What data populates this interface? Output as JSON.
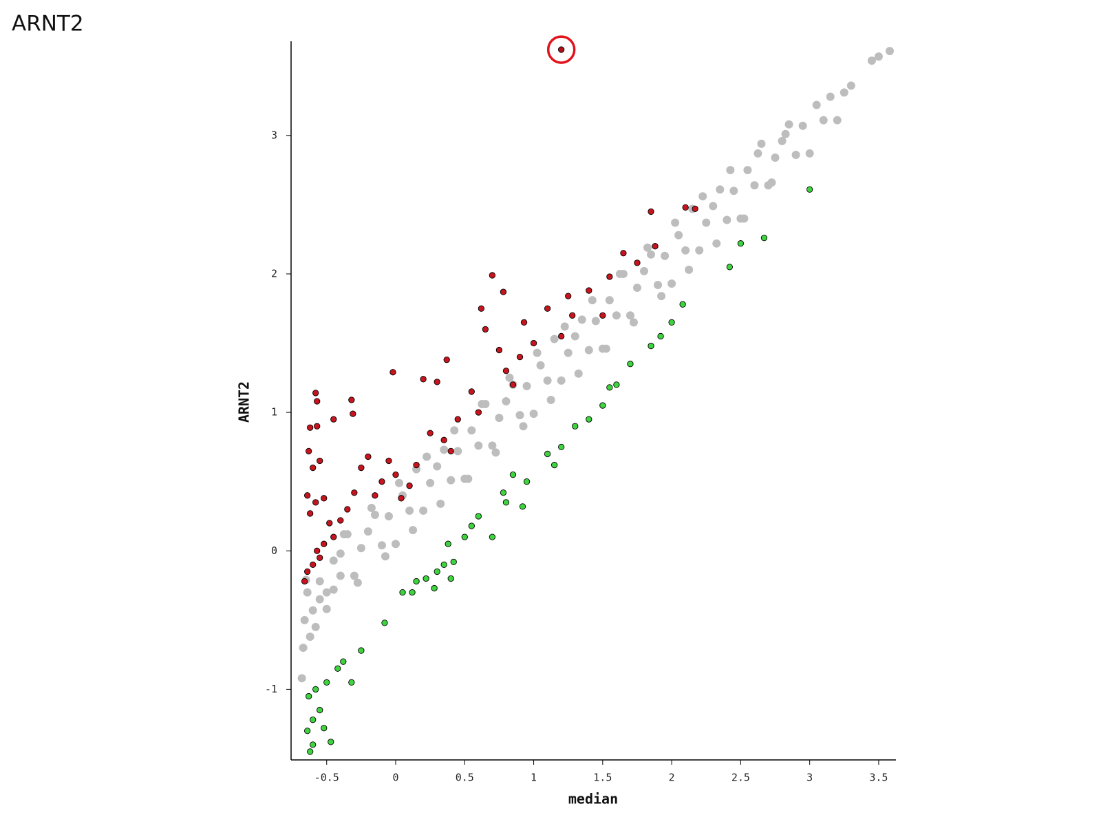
{
  "chart_data": {
    "type": "scatter",
    "title": "ARNT2",
    "xlabel": "median",
    "ylabel": "ARNT2",
    "xlim": [
      -0.758,
      3.625
    ],
    "ylim": [
      -1.51,
      3.68
    ],
    "xticks": [
      -0.5,
      0,
      0.5,
      1,
      1.5,
      2,
      2.5,
      3,
      3.5
    ],
    "yticks": [
      -1,
      0,
      1,
      2,
      3
    ],
    "grid": false,
    "series": [
      {
        "color": "#bdbdbd",
        "edgecolor": "none",
        "x": [
          -0.65,
          -0.6,
          -0.55,
          -0.5,
          -0.45,
          -0.4,
          -0.35,
          -0.3,
          -0.25,
          -0.2,
          -0.15,
          -0.1,
          -0.05,
          0,
          0.05,
          0.1,
          0.15,
          0.2,
          0.25,
          0.3,
          0.35,
          0.4,
          0.45,
          0.5,
          0.55,
          0.6,
          0.65,
          0.7,
          0.75,
          0.8,
          0.85,
          0.9,
          0.95,
          1,
          1.05,
          1.1,
          1.15,
          1.2,
          1.25,
          1.3,
          1.35,
          1.4,
          1.45,
          1.5,
          1.55,
          1.6,
          1.65,
          1.7,
          1.75,
          1.8,
          1.85,
          1.9,
          1.95,
          2,
          2.05,
          2.1,
          2.15,
          2.2,
          2.25,
          2.3,
          2.35,
          2.4,
          2.45,
          2.5,
          2.55,
          2.6,
          2.65,
          2.7,
          2.75,
          2.8,
          2.85,
          2.9,
          2.95,
          3,
          3.05,
          3.1,
          3.15,
          3.2,
          3.25,
          3.3,
          3.45,
          3.5,
          3.58,
          -0.68,
          -0.67,
          -0.66,
          -0.64,
          -0.62,
          -0.58,
          -0.55,
          -0.5,
          -0.45,
          -0.4,
          -0.375,
          -0.275,
          -0.175,
          -0.075,
          0.025,
          0.125,
          0.225,
          0.325,
          0.425,
          0.525,
          0.625,
          0.725,
          0.825,
          0.925,
          1.025,
          1.125,
          1.225,
          1.325,
          1.425,
          1.525,
          1.625,
          1.725,
          1.825,
          1.925,
          2.025,
          2.125,
          2.225,
          2.325,
          2.425,
          2.525,
          2.625,
          2.725,
          2.825
        ],
        "values": [
          -0.21,
          -0.43,
          -0.22,
          -0.42,
          -0.07,
          -0.18,
          0.12,
          -0.18,
          0.02,
          0.14,
          0.26,
          0.04,
          0.25,
          0.05,
          0.4,
          0.29,
          0.59,
          0.29,
          0.49,
          0.61,
          0.73,
          0.51,
          0.72,
          0.52,
          0.87,
          0.76,
          1.06,
          0.76,
          0.96,
          1.08,
          1.2,
          0.98,
          1.19,
          0.99,
          1.34,
          1.23,
          1.53,
          1.23,
          1.43,
          1.55,
          1.67,
          1.45,
          1.66,
          1.46,
          1.81,
          1.7,
          2,
          1.7,
          1.9,
          2.02,
          2.14,
          1.92,
          2.13,
          1.93,
          2.28,
          2.17,
          2.47,
          2.17,
          2.37,
          2.49,
          2.61,
          2.39,
          2.6,
          2.4,
          2.75,
          2.64,
          2.94,
          2.64,
          2.84,
          2.96,
          3.08,
          2.86,
          3.07,
          2.87,
          3.22,
          3.11,
          3.28,
          3.11,
          3.31,
          3.36,
          3.54,
          3.57,
          3.61,
          -0.92,
          -0.7,
          -0.5,
          -0.3,
          -0.62,
          -0.55,
          -0.35,
          -0.3,
          -0.28,
          -0.02,
          0.12,
          -0.23,
          0.31,
          -0.04,
          0.49,
          0.15,
          0.68,
          0.34,
          0.87,
          0.52,
          1.06,
          0.71,
          1.25,
          0.9,
          1.43,
          1.09,
          1.62,
          1.28,
          1.81,
          1.46,
          2,
          1.65,
          2.19,
          1.84,
          2.37,
          2.03,
          2.56,
          2.22,
          2.75,
          2.4,
          2.87,
          2.66,
          3.01
        ]
      },
      {
        "color": "#c8141e",
        "edgecolor": "#000000",
        "x": [
          -0.58,
          -0.57,
          -0.62,
          -0.57,
          -0.45,
          -0.32,
          -0.31,
          -0.63,
          -0.6,
          -0.55,
          -0.64,
          -0.62,
          -0.58,
          -0.52,
          -0.48,
          -0.45,
          -0.4,
          -0.35,
          -0.3,
          -0.25,
          -0.2,
          -0.15,
          -0.1,
          -0.05,
          0,
          -0.02,
          0.04,
          0.1,
          0.15,
          0.2,
          0.25,
          0.3,
          0.37,
          0.35,
          0.4,
          0.45,
          0.55,
          0.6,
          0.62,
          0.7,
          0.78,
          0.65,
          0.75,
          0.8,
          0.85,
          0.93,
          0.9,
          1,
          1.1,
          1.2,
          1.25,
          1.28,
          1.4,
          1.5,
          1.55,
          1.65,
          1.75,
          1.85,
          1.88,
          2.1,
          2.17,
          -0.66,
          -0.64,
          -0.6,
          -0.57,
          -0.55,
          -0.52
        ],
        "values": [
          1.14,
          1.08,
          0.89,
          0.9,
          0.95,
          1.09,
          0.99,
          0.72,
          0.6,
          0.65,
          0.4,
          0.27,
          0.35,
          0.38,
          0.2,
          0.1,
          0.22,
          0.3,
          0.42,
          0.6,
          0.68,
          0.4,
          0.5,
          0.65,
          0.55,
          1.29,
          0.38,
          0.47,
          0.62,
          1.24,
          0.85,
          1.22,
          1.38,
          0.8,
          0.72,
          0.95,
          1.15,
          1,
          1.75,
          1.99,
          1.87,
          1.6,
          1.45,
          1.3,
          1.2,
          1.65,
          1.4,
          1.5,
          1.75,
          1.55,
          1.84,
          1.7,
          1.88,
          1.7,
          1.98,
          2.15,
          2.08,
          2.45,
          2.2,
          2.48,
          2.47,
          -0.22,
          -0.15,
          -0.1,
          0,
          -0.05,
          0.05
        ]
      },
      {
        "color": "#3fd43f",
        "edgecolor": "#000000",
        "x": [
          -0.62,
          -0.6,
          -0.64,
          -0.6,
          -0.55,
          -0.52,
          -0.47,
          -0.63,
          -0.58,
          -0.5,
          -0.42,
          -0.38,
          -0.32,
          -0.25,
          -0.08,
          0.05,
          0.12,
          0.15,
          0.22,
          0.28,
          0.3,
          0.35,
          0.42,
          0.4,
          0.38,
          0.5,
          0.55,
          0.6,
          0.7,
          0.78,
          0.8,
          0.85,
          0.95,
          0.92,
          1.1,
          1.2,
          1.15,
          1.3,
          1.4,
          1.5,
          1.55,
          1.6,
          1.7,
          1.85,
          1.92,
          2,
          2.08,
          2.42,
          2.5,
          2.67,
          3
        ],
        "values": [
          -1.45,
          -1.4,
          -1.3,
          -1.22,
          -1.15,
          -1.28,
          -1.38,
          -1.05,
          -1,
          -0.95,
          -0.85,
          -0.8,
          -0.95,
          -0.72,
          -0.52,
          -0.3,
          -0.3,
          -0.22,
          -0.2,
          -0.27,
          -0.15,
          -0.1,
          -0.08,
          -0.2,
          0.05,
          0.1,
          0.18,
          0.25,
          0.1,
          0.42,
          0.35,
          0.55,
          0.5,
          0.32,
          0.7,
          0.75,
          0.62,
          0.9,
          0.95,
          1.05,
          1.18,
          1.2,
          1.35,
          1.48,
          1.55,
          1.65,
          1.78,
          2.05,
          2.22,
          2.26,
          2.61
        ]
      },
      {
        "color": "#b01018",
        "edgecolor": "#000000",
        "x": [
          1.2
        ],
        "values": [
          3.62
        ]
      }
    ]
  }
}
